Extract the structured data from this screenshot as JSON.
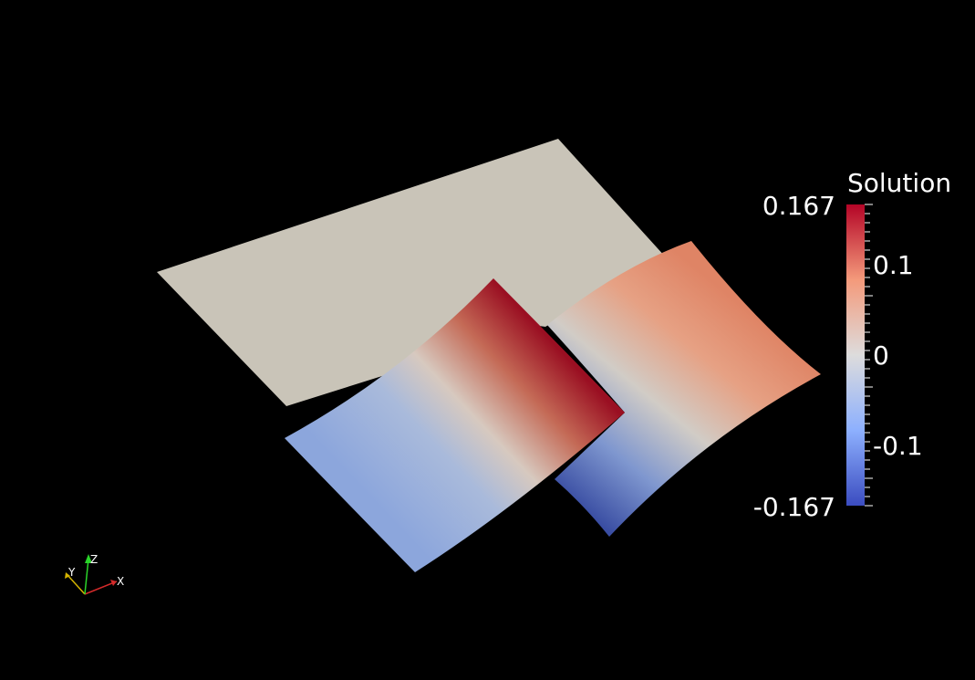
{
  "scalar_bar": {
    "title": "Solution",
    "max_label": "0.167",
    "min_label": "-0.167",
    "tick_labels": [
      "0.1",
      "0",
      "-0.1"
    ],
    "range": [
      -0.167,
      0.167
    ],
    "colormap": [
      "#3b4cc0",
      "#8db0fe",
      "#dddcdc",
      "#f49a7b",
      "#b40426"
    ]
  },
  "axes_widget": {
    "x_label": "X",
    "y_label": "Y",
    "z_label": "Z",
    "x_color": "#d42a2a",
    "y_color": "#d4b300",
    "z_color": "#2ad42a"
  },
  "scene": {
    "background": "#000000",
    "flat_surface_color": "#c9c4b8"
  }
}
